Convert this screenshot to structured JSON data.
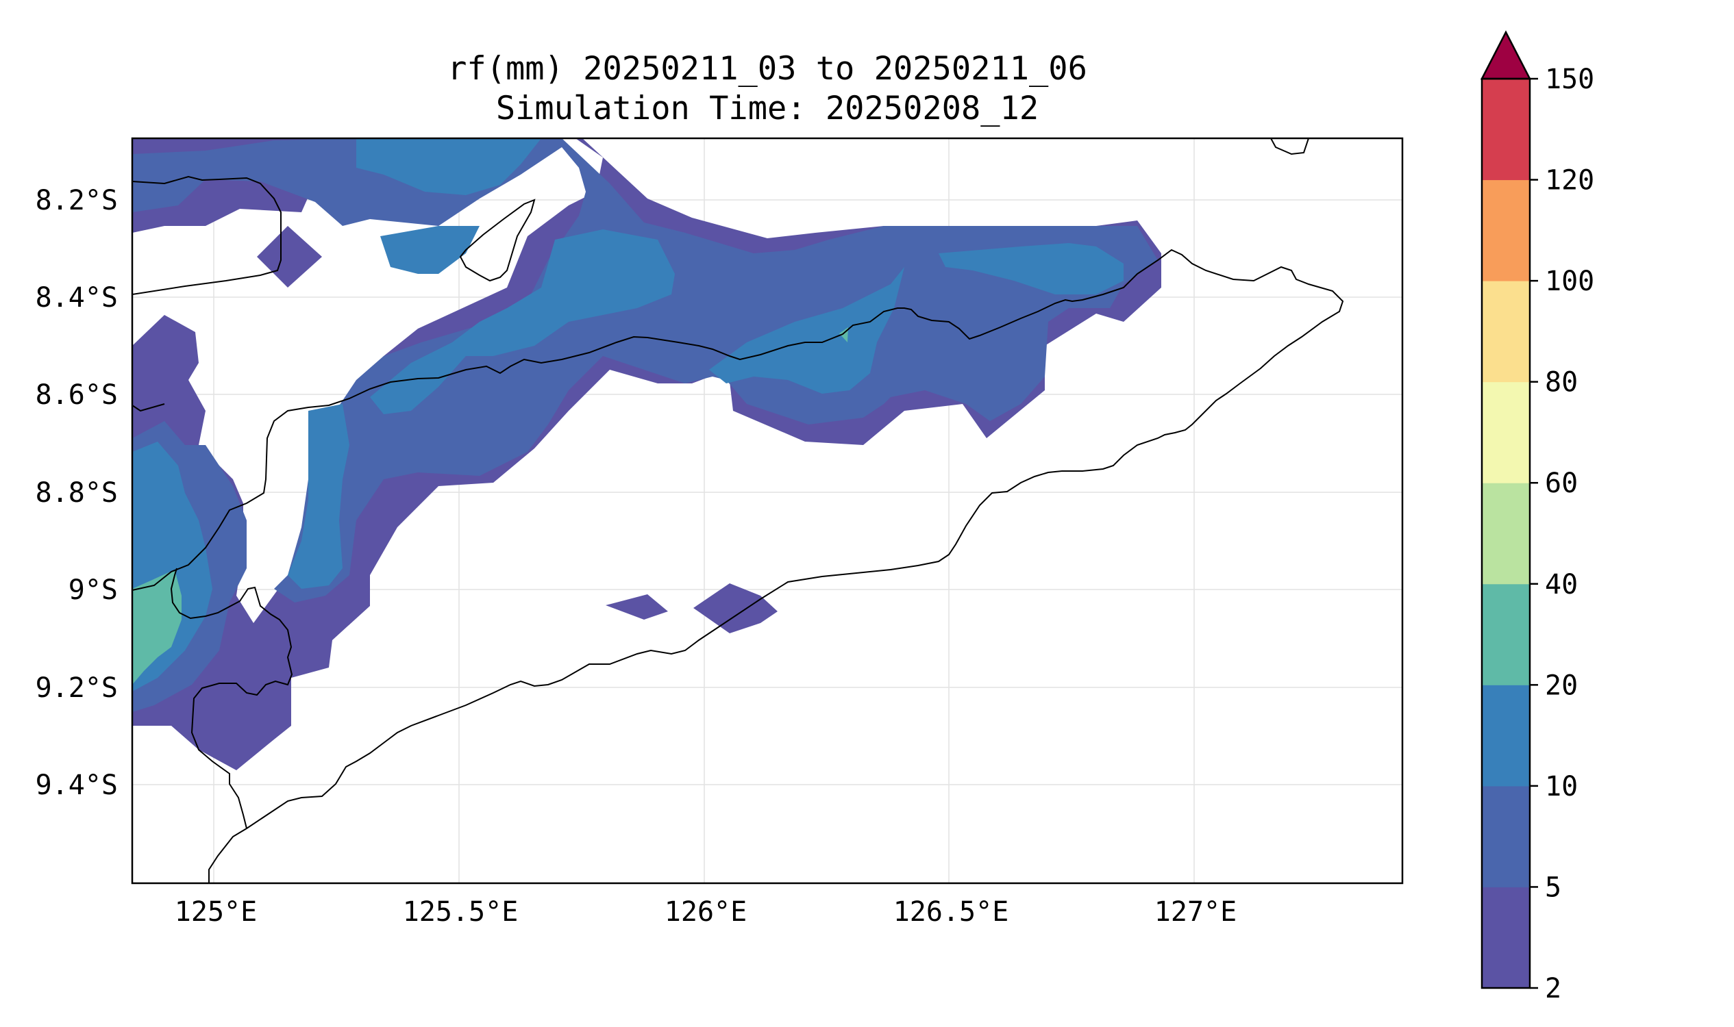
{
  "title": {
    "line1": "rf(mm) 20250211_03 to 20250211_06",
    "line2": "Simulation Time: 20250208_12"
  },
  "map": {
    "x_ticks": [
      "125°E",
      "125.5°E",
      "126°E",
      "126.5°E",
      "127°E"
    ],
    "y_ticks": [
      "8.2°S",
      "8.4°S",
      "8.6°S",
      "8.8°S",
      "9°S",
      "9.2°S",
      "9.4°S"
    ],
    "lon_range": [
      124.83,
      127.43
    ],
    "lat_range": [
      -9.6,
      -8.08
    ]
  },
  "colorbar": {
    "levels": [
      "2",
      "5",
      "10",
      "20",
      "40",
      "60",
      "80",
      "100",
      "120",
      "150"
    ],
    "colors": [
      "#5b53a4",
      "#4a66ad",
      "#3880ba",
      "#5fbaa7",
      "#bae3a0",
      "#f3f8b0",
      "#fbdf8e",
      "#f89d5a",
      "#d53e4f",
      "#9e0142"
    ],
    "extend": "max"
  },
  "legend_colors": {
    "band_2_5": "#5b53a4",
    "band_5_10": "#4a66ad",
    "band_10_20": "#3880ba",
    "band_20_40": "#5fbaa7"
  }
}
